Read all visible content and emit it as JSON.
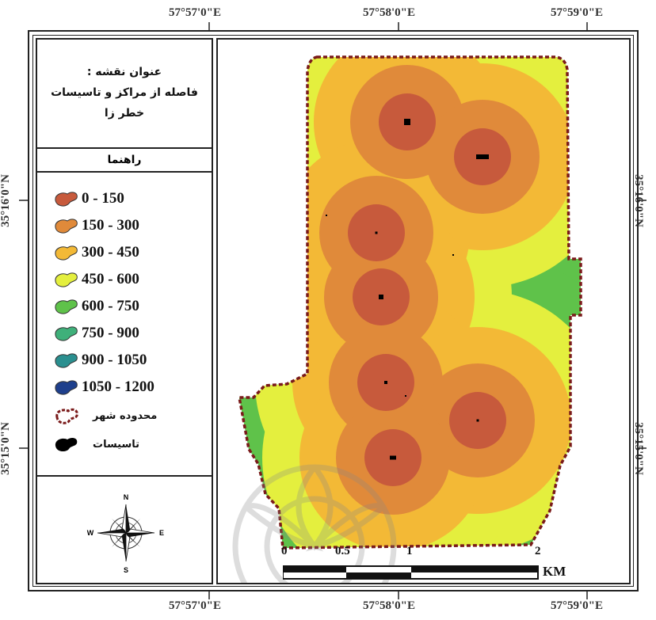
{
  "coordinates": {
    "top": [
      "57°57'0\"E",
      "57°58'0\"E",
      "57°59'0\"E"
    ],
    "bottom": [
      "57°57'0\"E",
      "57°58'0\"E",
      "57°59'0\"E"
    ],
    "left": [
      "35°16'0\"N",
      "35°15'0\"N"
    ],
    "right": [
      "35°16'0\"N",
      "35°15'0\"N"
    ]
  },
  "title": {
    "label": "عنوان نقشه :",
    "line1": "فاصله از مراکز و تاسیسات",
    "line2": "خطر زا"
  },
  "legend": {
    "heading": "راهنما",
    "items": [
      {
        "label": "0 - 150",
        "color": "#c75a3c"
      },
      {
        "label": "150 - 300",
        "color": "#e08a3a"
      },
      {
        "label": "300 - 450",
        "color": "#f3b936"
      },
      {
        "label": "450 - 600",
        "color": "#e4ef3e"
      },
      {
        "label": "600 - 750",
        "color": "#5fc24a"
      },
      {
        "label": "750 - 900",
        "color": "#3fb07a"
      },
      {
        "label": "900 - 1050",
        "color": "#2a8f8f"
      },
      {
        "label": "1050 - 1200",
        "color": "#1e3f8c"
      }
    ],
    "boundary_label": "محدوده شهر",
    "boundary_color": "#7a1a1a",
    "facility_label": "تاسیسات",
    "facility_color": "#000000"
  },
  "north_arrow": {
    "n": "N",
    "s": "S",
    "e": "E",
    "w": "W",
    "icon": "compass-rose-icon"
  },
  "scale_bar": {
    "ticks": [
      "0",
      "0.5",
      "1",
      "2"
    ],
    "unit": "KM"
  }
}
